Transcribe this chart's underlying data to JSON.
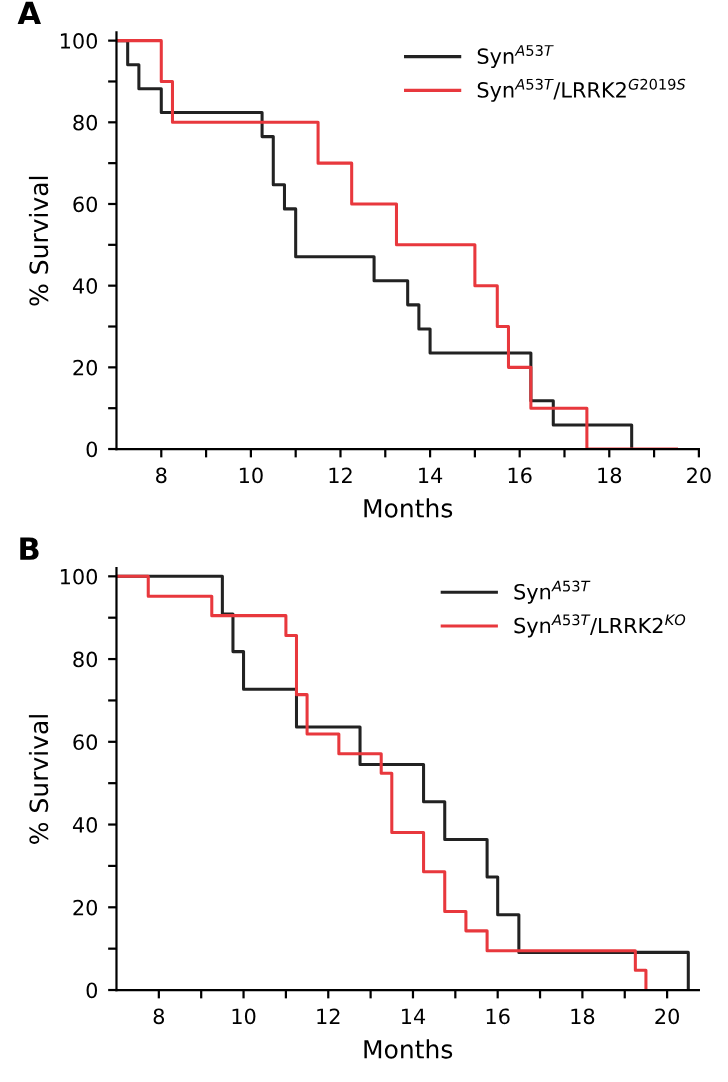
{
  "chart_data": [
    {
      "type": "step",
      "title": "A",
      "xlabel": "Months",
      "ylabel": "% Survival",
      "xlim": [
        7,
        20
      ],
      "ylim": [
        0,
        102
      ],
      "xticks": [
        8,
        {
          "value": 9,
          "label": null
        },
        10,
        {
          "value": 11,
          "label": null
        },
        12,
        {
          "value": 13,
          "label": null
        },
        14,
        {
          "value": 15,
          "label": null
        },
        16,
        {
          "value": 17,
          "label": null
        },
        18,
        {
          "value": 19,
          "label": null
        },
        20
      ],
      "yticks": [
        0,
        {
          "value": 10,
          "label": null
        },
        20,
        {
          "value": 30,
          "label": null
        },
        40,
        {
          "value": 50,
          "label": null
        },
        60,
        {
          "value": 70,
          "label": null
        },
        80,
        {
          "value": 90,
          "label": null
        },
        100
      ],
      "legend": "top right",
      "grid": false,
      "series": [
        {
          "name": "Syn$^{A53T}$",
          "color": "#222222",
          "x": [
            7,
            7.25,
            7.5,
            8,
            10.25,
            10.5,
            10.75,
            11,
            12.75,
            13.5,
            13.75,
            14,
            16.25,
            16.75,
            18.5
          ],
          "values": [
            100,
            94.1,
            88.2,
            82.4,
            76.5,
            64.7,
            58.8,
            47.1,
            41.2,
            35.3,
            29.4,
            23.5,
            11.8,
            5.9,
            0
          ]
        },
        {
          "name": "Syn$^{A53T}$/LRRK2$^{G2019S}$",
          "color": "#e8383d",
          "x": [
            7,
            8,
            8.25,
            11.5,
            12.25,
            13.25,
            15,
            15.5,
            15.75,
            16.25,
            17.5,
            19.5
          ],
          "values": [
            100,
            90,
            80,
            70,
            60,
            50,
            40,
            30,
            20,
            10,
            0,
            0
          ]
        }
      ]
    },
    {
      "type": "step",
      "title": "B",
      "xlabel": "Months",
      "ylabel": "% Survival",
      "xlim": [
        7,
        20.75
      ],
      "ylim": [
        0,
        102
      ],
      "xticks": [
        8,
        {
          "value": 9,
          "label": null
        },
        10,
        {
          "value": 11,
          "label": null
        },
        12,
        {
          "value": 13,
          "label": null
        },
        14,
        {
          "value": 15,
          "label": null
        },
        16,
        {
          "value": 17,
          "label": null
        },
        18,
        {
          "value": 19,
          "label": null
        },
        20
      ],
      "yticks": [
        0,
        {
          "value": 10,
          "label": null
        },
        20,
        {
          "value": 30,
          "label": null
        },
        40,
        {
          "value": 50,
          "label": null
        },
        60,
        {
          "value": 70,
          "label": null
        },
        80,
        {
          "value": 90,
          "label": null
        },
        100
      ],
      "legend": "top right",
      "grid": false,
      "series": [
        {
          "name": "Syn$^{A53T}$",
          "color": "#222222",
          "x": [
            7,
            9.5,
            9.75,
            10,
            11.25,
            12.75,
            14.25,
            14.75,
            15.75,
            16,
            16.5,
            20.5
          ],
          "values": [
            100,
            90.9,
            81.8,
            72.7,
            63.6,
            54.5,
            45.5,
            36.4,
            27.3,
            18.2,
            9.1,
            0
          ]
        },
        {
          "name": "Syn$^{A53T}$/LRRK2$^{KO}$",
          "color": "#e8383d",
          "x": [
            7,
            7.75,
            9.25,
            11,
            11.25,
            11.5,
            12.25,
            13.25,
            13.5,
            14.25,
            14.75,
            15.25,
            15.75,
            19.25,
            19.5
          ],
          "values": [
            100,
            95.2,
            90.5,
            85.7,
            71.4,
            61.9,
            57.1,
            52.4,
            38.1,
            28.6,
            19,
            14.3,
            9.5,
            4.8,
            0
          ]
        }
      ]
    }
  ]
}
